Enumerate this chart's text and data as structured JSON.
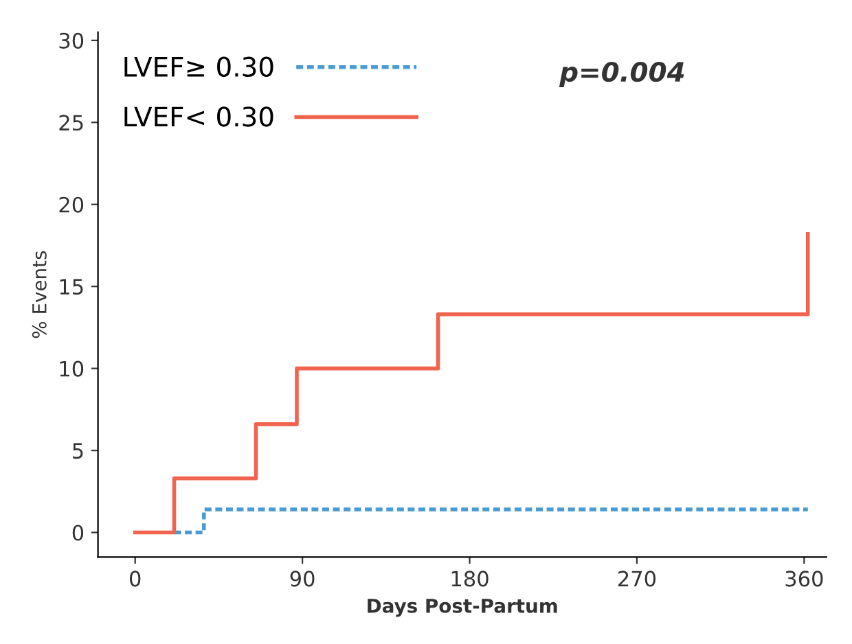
{
  "chart_data": {
    "type": "step",
    "xlabel": "Days Post-Partum",
    "ylabel": "% Events",
    "xlim": [
      -20,
      372
    ],
    "ylim": [
      -1.5,
      30.5
    ],
    "xticks": [
      0,
      90,
      180,
      270,
      360
    ],
    "yticks": [
      0,
      5,
      10,
      15,
      20,
      25,
      30
    ],
    "grid": false,
    "legend": "top left",
    "annotations": [
      "p=0.004"
    ],
    "series": [
      {
        "name": "LVEF≥ 0.30",
        "color": "#4a9ad4",
        "line_style": "dashed",
        "x": [
          21,
          37,
          362
        ],
        "values": [
          0,
          1.4,
          1.4
        ]
      },
      {
        "name": "LVEF< 0.30",
        "color": "#f0634f",
        "line_style": "solid",
        "x": [
          0,
          21,
          65,
          87,
          163,
          362,
          362
        ],
        "values": [
          0,
          3.3,
          6.6,
          10,
          13.3,
          13.3,
          18.2
        ]
      }
    ]
  }
}
